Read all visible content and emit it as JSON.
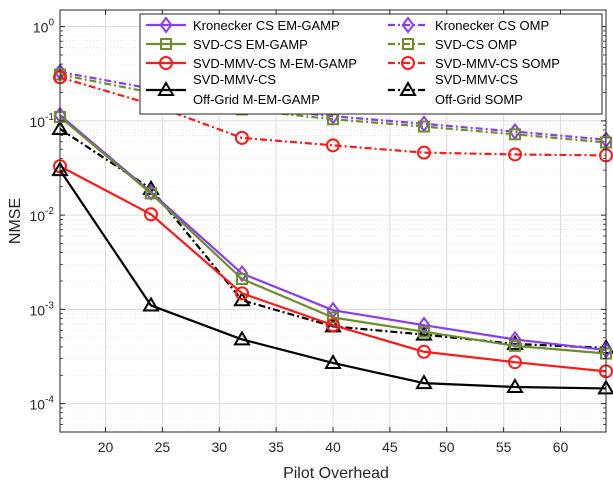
{
  "chart_data": {
    "type": "line",
    "title": "",
    "xlabel": "Pilot Overhead",
    "ylabel": "NMSE",
    "xlim": [
      16,
      64
    ],
    "ylim": [
      5e-05,
      1.5
    ],
    "yscale": "log",
    "grid": true,
    "minor_grid": true,
    "legend_position": "top-right",
    "legend_columns": 2,
    "x_ticks": [
      20,
      25,
      30,
      35,
      40,
      45,
      50,
      55,
      60
    ],
    "y_ticks": [
      {
        "value": 0.0001,
        "base": "10",
        "exp": "-4"
      },
      {
        "value": 0.001,
        "base": "10",
        "exp": "-3"
      },
      {
        "value": 0.01,
        "base": "10",
        "exp": "-2"
      },
      {
        "value": 0.1,
        "base": "10",
        "exp": "-1"
      },
      {
        "value": 1,
        "base": "10",
        "exp": "0"
      }
    ],
    "x": [
      16,
      24,
      32,
      40,
      48,
      56,
      64
    ],
    "series": [
      {
        "name": "Kronecker CS EM-GAMP",
        "color": "#8b3cf0",
        "dash": "solid",
        "marker": "diamond",
        "values": [
          0.115,
          0.0175,
          0.0024,
          0.00098,
          0.00068,
          0.00048,
          0.00037
        ]
      },
      {
        "name": "SVD-CS EM-GAMP",
        "color": "#6a8f2a",
        "dash": "solid",
        "marker": "square",
        "values": [
          0.11,
          0.017,
          0.0021,
          0.00082,
          0.00058,
          0.00041,
          0.00034
        ]
      },
      {
        "name": "SVD-MMV-CS M-EM-GAMP",
        "color": "#ff1a1a",
        "dash": "solid",
        "marker": "circle",
        "values": [
          0.033,
          0.0102,
          0.00148,
          0.00068,
          0.000355,
          0.000275,
          0.00022
        ]
      },
      {
        "name": [
          "SVD-MMV-CS",
          "Off-Grid M-EM-GAMP"
        ],
        "color": "#000000",
        "dash": "solid",
        "marker": "triangle",
        "values": [
          0.03,
          0.0011,
          0.00048,
          0.00027,
          0.000165,
          0.00015,
          0.000145
        ]
      },
      {
        "name": "Kronecker CS OMP",
        "color": "#8b3cf0",
        "dash": "dashdot",
        "marker": "diamond",
        "values": [
          0.33,
          0.22,
          0.14,
          0.112,
          0.093,
          0.077,
          0.063
        ]
      },
      {
        "name": "SVD-CS OMP",
        "color": "#6a8f2a",
        "dash": "dashdot",
        "marker": "square",
        "values": [
          0.31,
          0.2,
          0.132,
          0.104,
          0.087,
          0.072,
          0.059
        ]
      },
      {
        "name": "SVD-MMV-CS SOMP",
        "color": "#ff1a1a",
        "dash": "dashdot",
        "marker": "circle",
        "values": [
          0.29,
          0.15,
          0.066,
          0.055,
          0.046,
          0.044,
          0.043
        ]
      },
      {
        "name": [
          "SVD-MMV-CS",
          "Off-Grid SOMP"
        ],
        "color": "#000000",
        "dash": "dashdot",
        "marker": "triangle",
        "values": [
          0.082,
          0.019,
          0.00125,
          0.00066,
          0.00054,
          0.00043,
          0.00039
        ]
      }
    ]
  }
}
